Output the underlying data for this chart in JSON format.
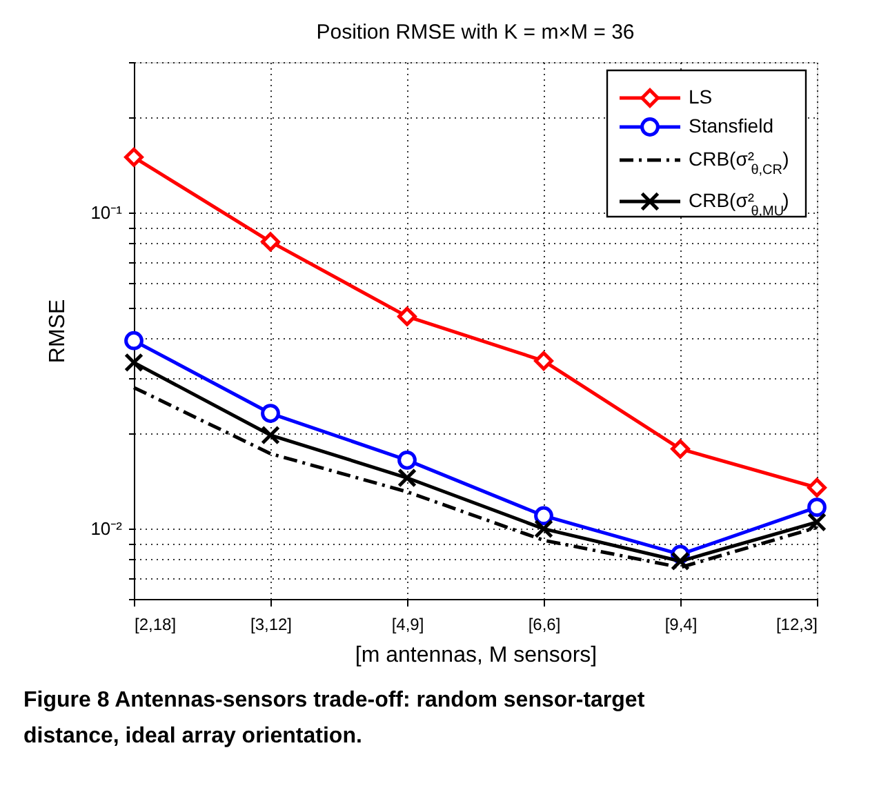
{
  "chart_data": {
    "type": "line",
    "title": "Position RMSE with K = m×M = 36",
    "xlabel": "[m antennas, M sensors]",
    "ylabel": "RMSE",
    "categories": [
      "[2,18]",
      "[3,12]",
      "[4,9]",
      "[6,6]",
      "[9,4]",
      "[12,3]"
    ],
    "series": [
      {
        "name": "LS",
        "color": "#ff0000",
        "marker": "diamond",
        "line_style": "solid",
        "values": [
          0.15,
          0.081,
          0.047,
          0.034,
          0.0179,
          0.0135
        ]
      },
      {
        "name": "Stansfield",
        "color": "#0000ff",
        "marker": "circle",
        "line_style": "solid",
        "values": [
          0.0394,
          0.0232,
          0.0165,
          0.011,
          0.0083,
          0.0117
        ]
      },
      {
        "name": "CRB(σ²$_{θ,CR}$)",
        "color": "#000000",
        "marker": "none",
        "line_style": "dashed",
        "values": [
          0.028,
          0.0173,
          0.0131,
          0.0092,
          0.00755,
          0.0101
        ]
      },
      {
        "name": "CRB(σ²$_{θ,MU}$)",
        "color": "#000000",
        "marker": "cross",
        "line_style": "solid",
        "values": [
          0.0336,
          0.0198,
          0.0145,
          0.01,
          0.0079,
          0.0105
        ]
      }
    ],
    "log": true,
    "ylim": [
      0.006,
      0.3
    ],
    "yticks": [
      {
        "value": 0.006,
        "label": null
      },
      {
        "value": 0.007,
        "label": null
      },
      {
        "value": 0.008,
        "label": null
      },
      {
        "value": 0.009,
        "label": null
      },
      {
        "value": 0.01,
        "label": "10⁻²"
      },
      {
        "value": 0.02,
        "label": null
      },
      {
        "value": 0.03,
        "label": null
      },
      {
        "value": 0.04,
        "label": null
      },
      {
        "value": 0.05,
        "label": null
      },
      {
        "value": 0.06,
        "label": null
      },
      {
        "value": 0.07,
        "label": null
      },
      {
        "value": 0.08,
        "label": null
      },
      {
        "value": 0.09,
        "label": null
      },
      {
        "value": 0.1,
        "label": "10⁻¹"
      },
      {
        "value": 0.2,
        "label": null
      },
      {
        "value": 0.3,
        "label": null
      }
    ],
    "grid": true,
    "legend": "top right",
    "annotations": [
      "Figure 8 Antennas-sensors trade-off: random sensor-target distance, ideal array orientation."
    ]
  }
}
